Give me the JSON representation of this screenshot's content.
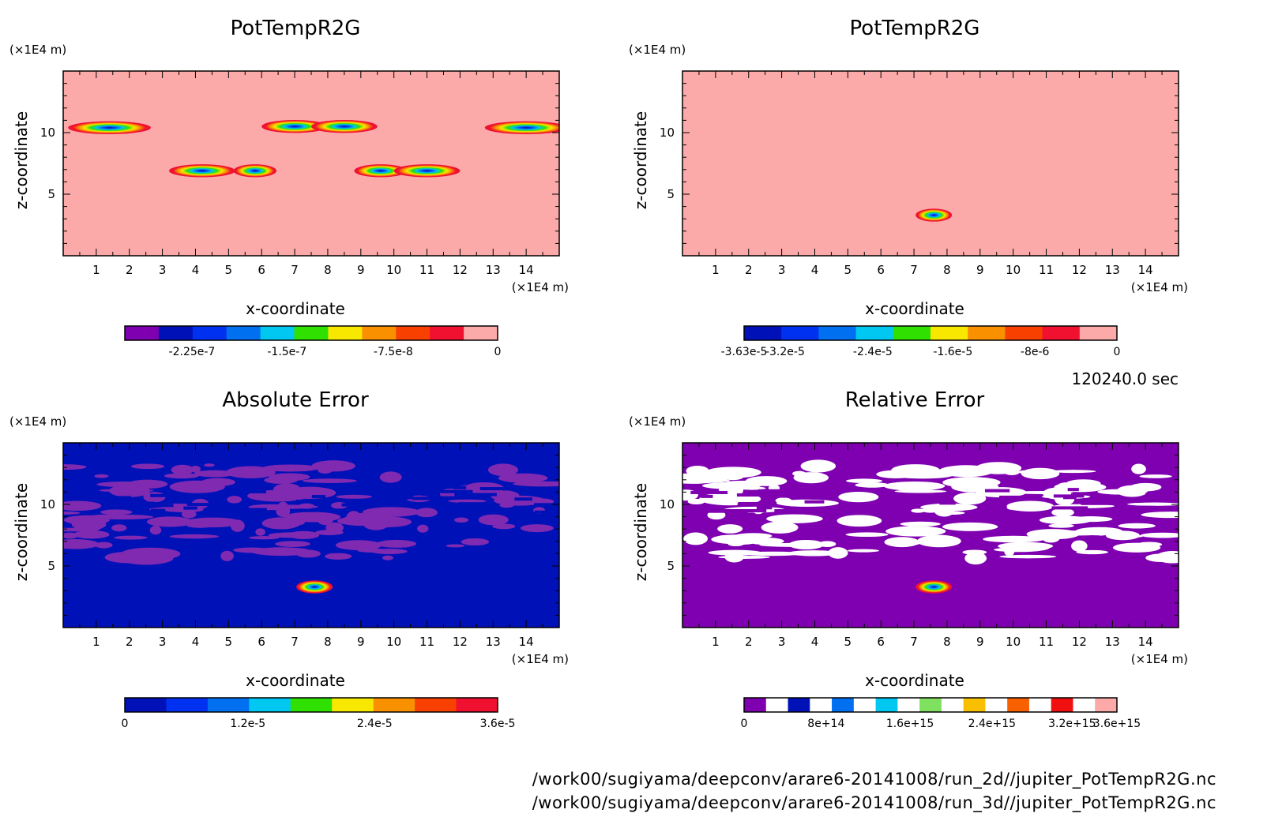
{
  "files": [
    "/work00/sugiyama/deepconv/arare6-20141008/run_2d//jupiter_PotTempR2G.nc",
    "/work00/sugiyama/deepconv/arare6-20141008/run_3d//jupiter_PotTempR2G.nc"
  ],
  "time_label": "120240.0 sec",
  "chart_data": [
    {
      "type": "heatmap",
      "title": "PotTempR2G",
      "xlabel": "x-coordinate",
      "ylabel": "z-coordinate",
      "x_unit": "(×1E4 m)",
      "y_unit": "(×1E4 m)",
      "xlim": [
        0,
        15
      ],
      "ylim": [
        0,
        15
      ],
      "x_ticks": [
        1,
        2,
        3,
        4,
        5,
        6,
        7,
        8,
        9,
        10,
        11,
        12,
        13,
        14
      ],
      "y_ticks": [
        5,
        10
      ],
      "background": "#fca9a9",
      "features": [
        {
          "x": 1.4,
          "z": 10.4,
          "w": 2.5
        },
        {
          "x": 7.0,
          "z": 10.5,
          "w": 2.0
        },
        {
          "x": 8.5,
          "z": 10.5,
          "w": 2.0
        },
        {
          "x": 14.0,
          "z": 10.4,
          "w": 2.5
        },
        {
          "x": 4.2,
          "z": 6.9,
          "w": 2.0
        },
        {
          "x": 5.8,
          "z": 6.9,
          "w": 1.3
        },
        {
          "x": 9.6,
          "z": 6.9,
          "w": 1.6
        },
        {
          "x": 11.0,
          "z": 6.9,
          "w": 2.0
        }
      ],
      "colorbar": {
        "colors": [
          "#7f00b0",
          "#0011b8",
          "#0030f0",
          "#0070f0",
          "#00c8f0",
          "#30e000",
          "#f8e800",
          "#f89000",
          "#f84000",
          "#f01030",
          "#fca9a9"
        ],
        "tick_labels": [
          {
            "text": "-2.25e-7",
            "at": 0.18
          },
          {
            "text": "-1.5e-7",
            "at": 0.435
          },
          {
            "text": "-7.5e-8",
            "at": 0.72
          },
          {
            "text": "0",
            "at": 1.0
          }
        ]
      }
    },
    {
      "type": "heatmap",
      "title": "PotTempR2G",
      "xlabel": "x-coordinate",
      "ylabel": "z-coordinate",
      "x_unit": "(×1E4 m)",
      "y_unit": "(×1E4 m)",
      "xlim": [
        0,
        15
      ],
      "ylim": [
        0,
        15
      ],
      "x_ticks": [
        1,
        2,
        3,
        4,
        5,
        6,
        7,
        8,
        9,
        10,
        11,
        12,
        13,
        14
      ],
      "y_ticks": [
        5,
        10
      ],
      "background": "#fca9a9",
      "features": [
        {
          "x": 7.6,
          "z": 3.3,
          "w": 1.1
        }
      ],
      "colorbar": {
        "colors": [
          "#0011b8",
          "#0030f0",
          "#0070f0",
          "#00c8f0",
          "#30e000",
          "#f8e800",
          "#f89000",
          "#f84000",
          "#f01030",
          "#fca9a9"
        ],
        "tick_labels": [
          {
            "text": "-3.63e-5",
            "at": 0.0
          },
          {
            "text": "-3.2e-5",
            "at": 0.11
          },
          {
            "text": "-2.4e-5",
            "at": 0.345
          },
          {
            "text": "-1.6e-5",
            "at": 0.56
          },
          {
            "text": "-8e-6",
            "at": 0.78
          },
          {
            "text": "0",
            "at": 1.0
          }
        ]
      }
    },
    {
      "type": "heatmap",
      "title": "Absolute Error",
      "xlabel": "x-coordinate",
      "ylabel": "z-coordinate",
      "x_unit": "(×1E4 m)",
      "y_unit": "(×1E4 m)",
      "xlim": [
        0,
        15
      ],
      "ylim": [
        0,
        15
      ],
      "x_ticks": [
        1,
        2,
        3,
        4,
        5,
        6,
        7,
        8,
        9,
        10,
        11,
        12,
        13,
        14
      ],
      "y_ticks": [
        5,
        10
      ],
      "background": "#0011b8",
      "layer_color": "#7f2ab0",
      "features": [
        {
          "x": 7.6,
          "z": 3.3,
          "w": 1.1
        }
      ],
      "colorbar": {
        "colors": [
          "#0011b8",
          "#0030f0",
          "#0070f0",
          "#00c8f0",
          "#30e000",
          "#f8e800",
          "#f89000",
          "#f84000",
          "#f01030"
        ],
        "tick_labels": [
          {
            "text": "0",
            "at": 0.0
          },
          {
            "text": "1.2e-5",
            "at": 0.33
          },
          {
            "text": "2.4e-5",
            "at": 0.67
          },
          {
            "text": "3.6e-5",
            "at": 1.0
          }
        ]
      }
    },
    {
      "type": "heatmap",
      "title": "Relative Error",
      "xlabel": "x-coordinate",
      "ylabel": "z-coordinate",
      "x_unit": "(×1E4 m)",
      "y_unit": "(×1E4 m)",
      "xlim": [
        0,
        15
      ],
      "ylim": [
        0,
        15
      ],
      "x_ticks": [
        1,
        2,
        3,
        4,
        5,
        6,
        7,
        8,
        9,
        10,
        11,
        12,
        13,
        14
      ],
      "y_ticks": [
        5,
        10
      ],
      "background": "#7f00b0",
      "layer_color": "#ffffff",
      "features": [
        {
          "x": 7.6,
          "z": 3.3,
          "w": 1.1
        }
      ],
      "colorbar": {
        "colors": [
          "#7f00b0",
          "#ffffff",
          "#0011b8",
          "#ffffff",
          "#0070f0",
          "#ffffff",
          "#00c8f0",
          "#ffffff",
          "#80e060",
          "#ffffff",
          "#f8c000",
          "#ffffff",
          "#f86000",
          "#ffffff",
          "#f01010",
          "#ffffff",
          "#fca9a9"
        ],
        "tick_labels": [
          {
            "text": "0",
            "at": 0.0
          },
          {
            "text": "8e+14",
            "at": 0.22
          },
          {
            "text": "1.6e+15",
            "at": 0.445
          },
          {
            "text": "2.4e+15",
            "at": 0.665
          },
          {
            "text": "3.2e+15",
            "at": 0.88
          },
          {
            "text": "3.6e+15",
            "at": 1.0
          }
        ]
      }
    }
  ]
}
